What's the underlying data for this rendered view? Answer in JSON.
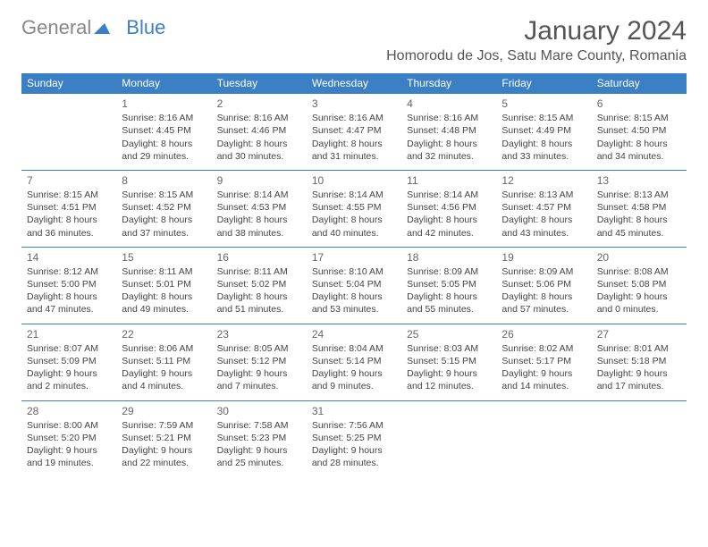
{
  "logo": {
    "general": "General",
    "blue": "Blue"
  },
  "title": "January 2024",
  "location": "Homorodu de Jos, Satu Mare County, Romania",
  "colors": {
    "header_bg": "#3b7fc4",
    "header_text": "#ffffff",
    "row_border": "#3b7fc4",
    "text": "#444444",
    "title_text": "#555555"
  },
  "days_of_week": [
    "Sunday",
    "Monday",
    "Tuesday",
    "Wednesday",
    "Thursday",
    "Friday",
    "Saturday"
  ],
  "weeks": [
    [
      null,
      {
        "n": "1",
        "sr": "Sunrise: 8:16 AM",
        "ss": "Sunset: 4:45 PM",
        "d1": "Daylight: 8 hours",
        "d2": "and 29 minutes."
      },
      {
        "n": "2",
        "sr": "Sunrise: 8:16 AM",
        "ss": "Sunset: 4:46 PM",
        "d1": "Daylight: 8 hours",
        "d2": "and 30 minutes."
      },
      {
        "n": "3",
        "sr": "Sunrise: 8:16 AM",
        "ss": "Sunset: 4:47 PM",
        "d1": "Daylight: 8 hours",
        "d2": "and 31 minutes."
      },
      {
        "n": "4",
        "sr": "Sunrise: 8:16 AM",
        "ss": "Sunset: 4:48 PM",
        "d1": "Daylight: 8 hours",
        "d2": "and 32 minutes."
      },
      {
        "n": "5",
        "sr": "Sunrise: 8:15 AM",
        "ss": "Sunset: 4:49 PM",
        "d1": "Daylight: 8 hours",
        "d2": "and 33 minutes."
      },
      {
        "n": "6",
        "sr": "Sunrise: 8:15 AM",
        "ss": "Sunset: 4:50 PM",
        "d1": "Daylight: 8 hours",
        "d2": "and 34 minutes."
      }
    ],
    [
      {
        "n": "7",
        "sr": "Sunrise: 8:15 AM",
        "ss": "Sunset: 4:51 PM",
        "d1": "Daylight: 8 hours",
        "d2": "and 36 minutes."
      },
      {
        "n": "8",
        "sr": "Sunrise: 8:15 AM",
        "ss": "Sunset: 4:52 PM",
        "d1": "Daylight: 8 hours",
        "d2": "and 37 minutes."
      },
      {
        "n": "9",
        "sr": "Sunrise: 8:14 AM",
        "ss": "Sunset: 4:53 PM",
        "d1": "Daylight: 8 hours",
        "d2": "and 38 minutes."
      },
      {
        "n": "10",
        "sr": "Sunrise: 8:14 AM",
        "ss": "Sunset: 4:55 PM",
        "d1": "Daylight: 8 hours",
        "d2": "and 40 minutes."
      },
      {
        "n": "11",
        "sr": "Sunrise: 8:14 AM",
        "ss": "Sunset: 4:56 PM",
        "d1": "Daylight: 8 hours",
        "d2": "and 42 minutes."
      },
      {
        "n": "12",
        "sr": "Sunrise: 8:13 AM",
        "ss": "Sunset: 4:57 PM",
        "d1": "Daylight: 8 hours",
        "d2": "and 43 minutes."
      },
      {
        "n": "13",
        "sr": "Sunrise: 8:13 AM",
        "ss": "Sunset: 4:58 PM",
        "d1": "Daylight: 8 hours",
        "d2": "and 45 minutes."
      }
    ],
    [
      {
        "n": "14",
        "sr": "Sunrise: 8:12 AM",
        "ss": "Sunset: 5:00 PM",
        "d1": "Daylight: 8 hours",
        "d2": "and 47 minutes."
      },
      {
        "n": "15",
        "sr": "Sunrise: 8:11 AM",
        "ss": "Sunset: 5:01 PM",
        "d1": "Daylight: 8 hours",
        "d2": "and 49 minutes."
      },
      {
        "n": "16",
        "sr": "Sunrise: 8:11 AM",
        "ss": "Sunset: 5:02 PM",
        "d1": "Daylight: 8 hours",
        "d2": "and 51 minutes."
      },
      {
        "n": "17",
        "sr": "Sunrise: 8:10 AM",
        "ss": "Sunset: 5:04 PM",
        "d1": "Daylight: 8 hours",
        "d2": "and 53 minutes."
      },
      {
        "n": "18",
        "sr": "Sunrise: 8:09 AM",
        "ss": "Sunset: 5:05 PM",
        "d1": "Daylight: 8 hours",
        "d2": "and 55 minutes."
      },
      {
        "n": "19",
        "sr": "Sunrise: 8:09 AM",
        "ss": "Sunset: 5:06 PM",
        "d1": "Daylight: 8 hours",
        "d2": "and 57 minutes."
      },
      {
        "n": "20",
        "sr": "Sunrise: 8:08 AM",
        "ss": "Sunset: 5:08 PM",
        "d1": "Daylight: 9 hours",
        "d2": "and 0 minutes."
      }
    ],
    [
      {
        "n": "21",
        "sr": "Sunrise: 8:07 AM",
        "ss": "Sunset: 5:09 PM",
        "d1": "Daylight: 9 hours",
        "d2": "and 2 minutes."
      },
      {
        "n": "22",
        "sr": "Sunrise: 8:06 AM",
        "ss": "Sunset: 5:11 PM",
        "d1": "Daylight: 9 hours",
        "d2": "and 4 minutes."
      },
      {
        "n": "23",
        "sr": "Sunrise: 8:05 AM",
        "ss": "Sunset: 5:12 PM",
        "d1": "Daylight: 9 hours",
        "d2": "and 7 minutes."
      },
      {
        "n": "24",
        "sr": "Sunrise: 8:04 AM",
        "ss": "Sunset: 5:14 PM",
        "d1": "Daylight: 9 hours",
        "d2": "and 9 minutes."
      },
      {
        "n": "25",
        "sr": "Sunrise: 8:03 AM",
        "ss": "Sunset: 5:15 PM",
        "d1": "Daylight: 9 hours",
        "d2": "and 12 minutes."
      },
      {
        "n": "26",
        "sr": "Sunrise: 8:02 AM",
        "ss": "Sunset: 5:17 PM",
        "d1": "Daylight: 9 hours",
        "d2": "and 14 minutes."
      },
      {
        "n": "27",
        "sr": "Sunrise: 8:01 AM",
        "ss": "Sunset: 5:18 PM",
        "d1": "Daylight: 9 hours",
        "d2": "and 17 minutes."
      }
    ],
    [
      {
        "n": "28",
        "sr": "Sunrise: 8:00 AM",
        "ss": "Sunset: 5:20 PM",
        "d1": "Daylight: 9 hours",
        "d2": "and 19 minutes."
      },
      {
        "n": "29",
        "sr": "Sunrise: 7:59 AM",
        "ss": "Sunset: 5:21 PM",
        "d1": "Daylight: 9 hours",
        "d2": "and 22 minutes."
      },
      {
        "n": "30",
        "sr": "Sunrise: 7:58 AM",
        "ss": "Sunset: 5:23 PM",
        "d1": "Daylight: 9 hours",
        "d2": "and 25 minutes."
      },
      {
        "n": "31",
        "sr": "Sunrise: 7:56 AM",
        "ss": "Sunset: 5:25 PM",
        "d1": "Daylight: 9 hours",
        "d2": "and 28 minutes."
      },
      null,
      null,
      null
    ]
  ]
}
